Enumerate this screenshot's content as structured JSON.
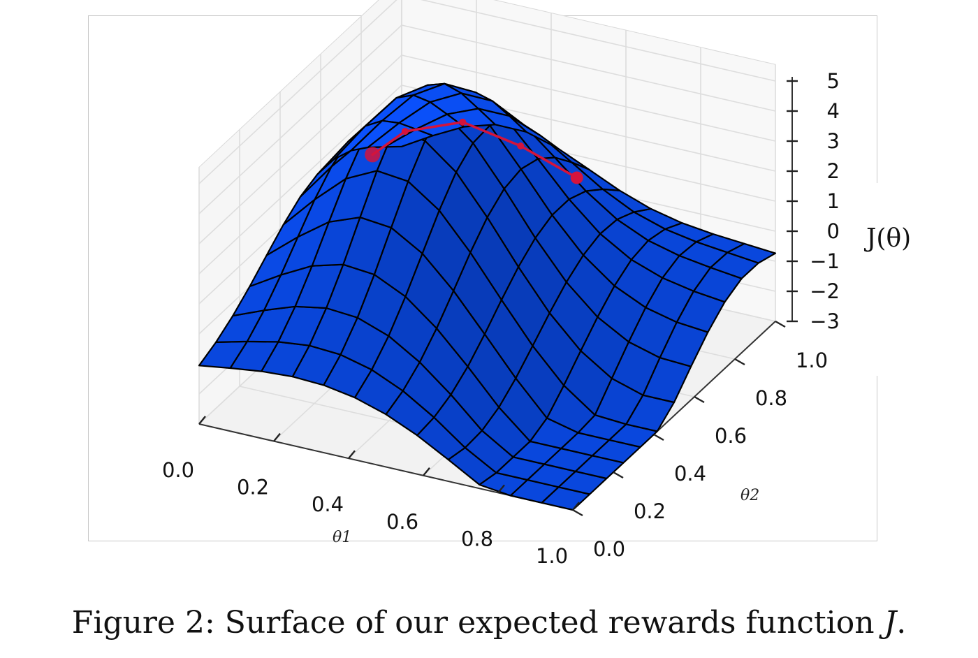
{
  "chart_data": {
    "type": "surface3d",
    "xlabel": "θ1",
    "ylabel": "θ2",
    "zlabel": "J(θ)",
    "xlim": [
      0.0,
      1.0
    ],
    "ylim": [
      0.0,
      1.0
    ],
    "zlim": [
      -3,
      5
    ],
    "x_ticks": [
      "0.0",
      "0.2",
      "0.4",
      "0.6",
      "0.8",
      "1.0"
    ],
    "y_ticks": [
      "0.0",
      "0.2",
      "0.4",
      "0.6",
      "0.8",
      "1.0"
    ],
    "z_ticks": [
      "−3",
      "−2",
      "−1",
      "0",
      "1",
      "2",
      "3",
      "4",
      "5"
    ],
    "grid": true,
    "surface_color": "#0a4df0",
    "mesh_color": "#000000",
    "grid_resolution": 12,
    "annotation": {
      "type": "gradient-ascent-path",
      "color": "#d4143c",
      "points": [
        {
          "x": 0.55,
          "y": 0.85
        },
        {
          "x": 0.47,
          "y": 0.72
        },
        {
          "x": 0.38,
          "y": 0.6
        },
        {
          "x": 0.28,
          "y": 0.5
        },
        {
          "x": 0.22,
          "y": 0.45
        }
      ]
    }
  },
  "caption": {
    "prefix": "Figure 2: Surface of our expected rewards function ",
    "symbol": "J",
    "suffix": "."
  }
}
